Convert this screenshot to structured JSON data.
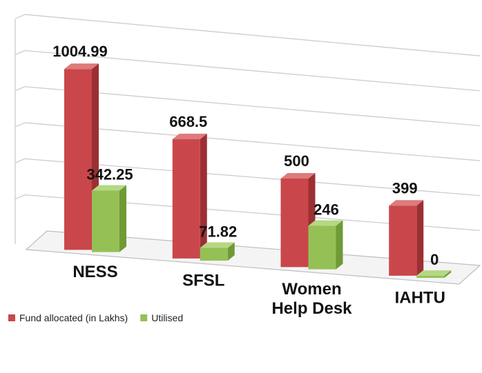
{
  "chart_data": {
    "type": "bar",
    "categories": [
      "NESS",
      "SFSL",
      "Women Help Desk",
      "IAHTU"
    ],
    "category_lines": [
      [
        "NESS"
      ],
      [
        "SFSL"
      ],
      [
        "Women",
        "Help Desk"
      ],
      [
        "IAHTU"
      ]
    ],
    "series": [
      {
        "name": "Fund allocated (in Lakhs)",
        "values": [
          1004.99,
          668.5,
          500,
          399
        ]
      },
      {
        "name": "Utilised",
        "values": [
          342.25,
          71.82,
          246,
          0
        ]
      }
    ],
    "data_labels": [
      [
        "1004.99",
        "668.5",
        "500",
        "399"
      ],
      [
        "342.25",
        "71.82",
        "246",
        "0"
      ]
    ],
    "ylim": [
      0,
      1200
    ],
    "grid": true,
    "legend_position": "bottom-left",
    "colors": {
      "fund_front": "#c9474a",
      "fund_side": "#9c2f33",
      "fund_top": "#dd7a7c",
      "util_front": "#94c056",
      "util_side": "#6f9a36",
      "util_top": "#b5d884",
      "grid": "#c8c8c8"
    }
  }
}
